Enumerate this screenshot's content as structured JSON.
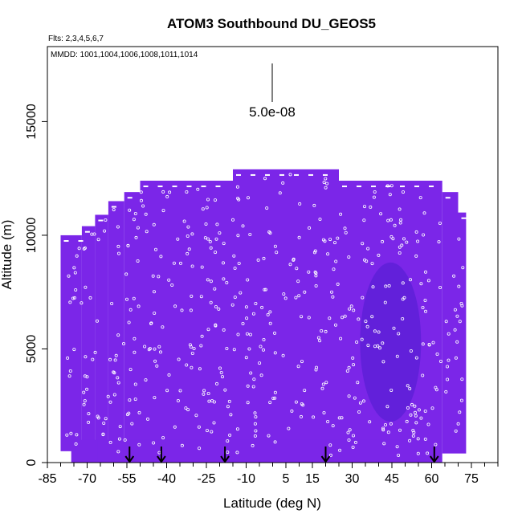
{
  "chart_data": {
    "type": "heatmap",
    "title": "ATOM3 Southbound DU_GEOS5",
    "flights_label": "Flts: 2,3,4,5,6,7",
    "mmdd_label": "MMDD: 1001,1004,1006,1008,1011,1014",
    "xlabel": "Latitude (deg N)",
    "ylabel": "Altitude (m)",
    "xlim": [
      -85,
      85
    ],
    "ylim": [
      0,
      18300
    ],
    "xticks": [
      -85,
      -70,
      -55,
      -40,
      -25,
      -10,
      5,
      15,
      30,
      45,
      60,
      75
    ],
    "yticks": [
      0,
      5000,
      10000,
      15000
    ],
    "scale_label": "5.0e-08",
    "grid": false,
    "colors": {
      "curtain": "#7b26e8",
      "curtain_dark": "#5a1fd6",
      "sample_markers": "#ffffff",
      "arrows": "#000000"
    },
    "arrow_latitudes": [
      -54,
      -42,
      -18,
      20,
      61
    ],
    "curtain_columns": [
      {
        "lat0": -80,
        "lat1": -72,
        "alt_max": 10000
      },
      {
        "lat0": -72,
        "lat1": -67,
        "alt_max": 10400
      },
      {
        "lat0": -67,
        "lat1": -62,
        "alt_max": 10900
      },
      {
        "lat0": -62,
        "lat1": -56,
        "alt_max": 11500
      },
      {
        "lat0": -56,
        "lat1": -50,
        "alt_max": 11900
      },
      {
        "lat0": -50,
        "lat1": -15,
        "alt_max": 12400
      },
      {
        "lat0": -15,
        "lat1": 25,
        "alt_max": 12900
      },
      {
        "lat0": 25,
        "lat1": 64,
        "alt_max": 12400
      },
      {
        "lat0": 64,
        "lat1": 70,
        "alt_max": 11900
      },
      {
        "lat0": 70,
        "lat1": 73,
        "alt_max": 11000
      }
    ],
    "curtain_bottom": [
      {
        "lat0": -80,
        "lat1": -76,
        "alt_min": 500
      },
      {
        "lat0": -76,
        "lat1": -66,
        "alt_min": 0
      },
      {
        "lat0": -66,
        "lat1": 56,
        "alt_min": 0
      },
      {
        "lat0": 56,
        "lat1": 73,
        "alt_min": 400
      }
    ],
    "enhanced_region": {
      "lat0": 33,
      "lat1": 56,
      "alt0": 1800,
      "alt1": 8800
    }
  }
}
